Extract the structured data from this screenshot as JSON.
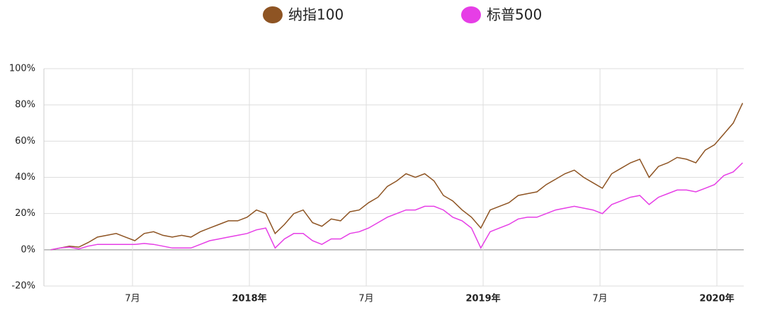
{
  "chart_data": {
    "type": "line",
    "legend": "top",
    "grid": true,
    "x": [
      2017.15,
      2017.19,
      2017.23,
      2017.27,
      2017.31,
      2017.35,
      2017.39,
      2017.43,
      2017.47,
      2017.51,
      2017.55,
      2017.59,
      2017.63,
      2017.67,
      2017.71,
      2017.75,
      2017.79,
      2017.83,
      2017.87,
      2017.91,
      2017.95,
      2017.99,
      2018.03,
      2018.07,
      2018.11,
      2018.15,
      2018.19,
      2018.23,
      2018.27,
      2018.31,
      2018.35,
      2018.39,
      2018.43,
      2018.47,
      2018.51,
      2018.55,
      2018.59,
      2018.63,
      2018.67,
      2018.71,
      2018.75,
      2018.79,
      2018.83,
      2018.87,
      2018.91,
      2018.95,
      2018.99,
      2019.03,
      2019.07,
      2019.11,
      2019.15,
      2019.19,
      2019.23,
      2019.27,
      2019.31,
      2019.35,
      2019.39,
      2019.43,
      2019.47,
      2019.51,
      2019.55,
      2019.59,
      2019.63,
      2019.67,
      2019.71,
      2019.75,
      2019.79,
      2019.83,
      2019.87,
      2019.91,
      2019.95,
      2019.99,
      2020.03,
      2020.07,
      2020.11
    ],
    "series": [
      {
        "name": "纳指100",
        "color": "#8e5423",
        "values": [
          0,
          1,
          2,
          1.5,
          4,
          7,
          8,
          9,
          7,
          5,
          9,
          10,
          8,
          7,
          8,
          7,
          10,
          12,
          14,
          16,
          16,
          18,
          22,
          20,
          9,
          14,
          20,
          22,
          15,
          13,
          17,
          16,
          21,
          22,
          26,
          29,
          35,
          38,
          42,
          40,
          42,
          38,
          30,
          27,
          22,
          18,
          12,
          22,
          24,
          26,
          30,
          31,
          32,
          36,
          39,
          42,
          44,
          40,
          37,
          34,
          42,
          45,
          48,
          50,
          40,
          46,
          48,
          51,
          50,
          48,
          55,
          58,
          64,
          70,
          81
        ]
      },
      {
        "name": "标普500",
        "color": "#e63ee6",
        "values": [
          0,
          1,
          1.5,
          0.5,
          2,
          3,
          3,
          3,
          3,
          3,
          3.5,
          3,
          2,
          1,
          1,
          1,
          3,
          5,
          6,
          7,
          8,
          9,
          11,
          12,
          1,
          6,
          9,
          9,
          5,
          3,
          6,
          6,
          9,
          10,
          12,
          15,
          18,
          20,
          22,
          22,
          24,
          24,
          22,
          18,
          16,
          12,
          1,
          10,
          12,
          14,
          17,
          18,
          18,
          20,
          22,
          23,
          24,
          23,
          22,
          20,
          25,
          27,
          29,
          30,
          25,
          29,
          31,
          33,
          33,
          32,
          34,
          36,
          41,
          43,
          48
        ]
      }
    ],
    "xlim": [
      2017.121,
      2020.115
    ],
    "xticks": [
      {
        "value": 2017.5,
        "label": "7月"
      },
      {
        "value": 2018,
        "label": "2018年"
      },
      {
        "value": 2018.5,
        "label": "7月"
      },
      {
        "value": 2019,
        "label": "2019年"
      },
      {
        "value": 2019.5,
        "label": "7月"
      },
      {
        "value": 2020,
        "label": "2020年"
      }
    ],
    "ylim": [
      -20,
      100
    ],
    "yticks": [
      {
        "value": -20,
        "label": "-20%"
      },
      {
        "value": 0,
        "label": "0%"
      },
      {
        "value": 20,
        "label": "20%"
      },
      {
        "value": 40,
        "label": "40%"
      },
      {
        "value": 60,
        "label": "60%"
      },
      {
        "value": 80,
        "label": "80%"
      },
      {
        "value": 100,
        "label": "100%"
      }
    ]
  }
}
